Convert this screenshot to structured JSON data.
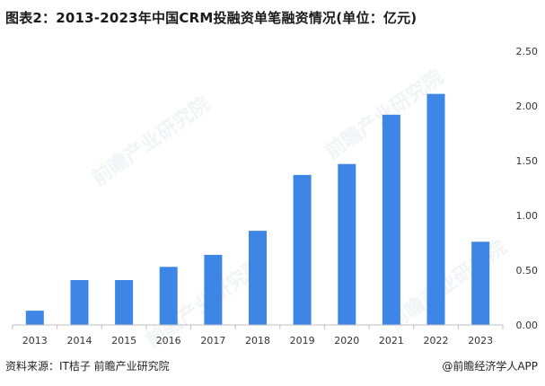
{
  "header": {
    "title": "图表2：2013-2023年中国CRM投融资单笔融资情况(单位：亿元)"
  },
  "footer": {
    "source": "资料来源：IT桔子 前瞻产业研究院",
    "credit": "@前瞻经济学人APP"
  },
  "watermark": {
    "text": "前瞻产业研究院"
  },
  "colors": {
    "bar": "#3d86e6",
    "axis": "#bfbfbf",
    "tick_text": "#333333"
  },
  "chart_data": {
    "type": "bar",
    "title": "图表2：2013-2023年中国CRM投融资单笔融资情况(单位：亿元)",
    "xlabel": "",
    "ylabel": "",
    "categories": [
      "2013",
      "2014",
      "2015",
      "2016",
      "2017",
      "2018",
      "2019",
      "2020",
      "2021",
      "2022",
      "2023"
    ],
    "values": [
      0.13,
      0.41,
      0.41,
      0.53,
      0.64,
      0.86,
      1.37,
      1.47,
      1.92,
      2.11,
      0.76
    ],
    "ylim": [
      0,
      2.5
    ],
    "yticks": [
      "0.00",
      "0.50",
      "1.00",
      "1.50",
      "2.00",
      "2.50"
    ],
    "yaxis_position": "right",
    "grid": false,
    "legend": "none"
  }
}
